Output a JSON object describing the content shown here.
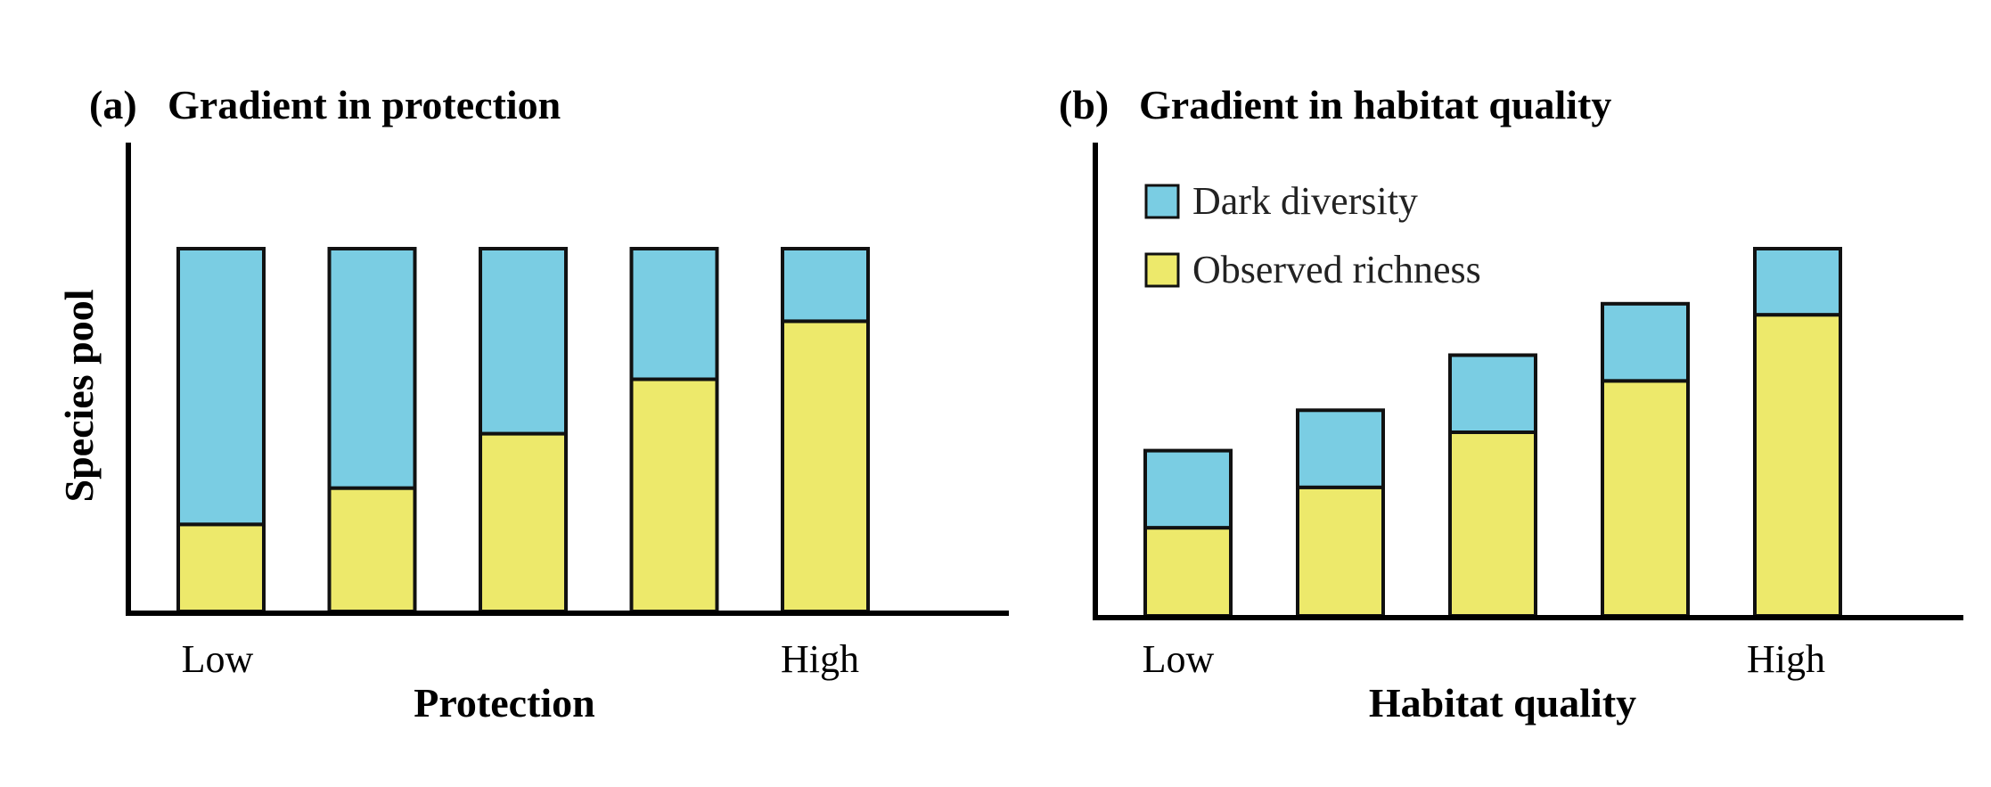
{
  "colors": {
    "dark_diversity": "#7acde3",
    "observed_richness": "#ede96b",
    "stroke": "#111111",
    "axis": "#000000"
  },
  "ylabel": "Species pool",
  "legend": {
    "dark": "Dark diversity",
    "observed": "Observed richness"
  },
  "chart_data": [
    {
      "type": "bar",
      "stacked": true,
      "panel": "(a)",
      "title": "Gradient in protection",
      "xlabel": "Protection",
      "ylabel": "Species pool",
      "tick_labels": [
        "Low",
        "",
        "",
        "",
        "High"
      ],
      "categories": [
        "1",
        "2",
        "3",
        "4",
        "5"
      ],
      "series": [
        {
          "name": "Observed richness",
          "values": [
            24,
            34,
            49,
            64,
            80
          ]
        },
        {
          "name": "Dark diversity",
          "values": [
            76,
            66,
            51,
            36,
            20
          ]
        }
      ],
      "ylim": [
        0,
        100
      ]
    },
    {
      "type": "bar",
      "stacked": true,
      "panel": "(b)",
      "title": "Gradient in habitat quality",
      "xlabel": "Habitat quality",
      "legend_position": "top-left",
      "tick_labels": [
        "Low",
        "",
        "",
        "",
        "High"
      ],
      "categories": [
        "1",
        "2",
        "3",
        "4",
        "5"
      ],
      "series": [
        {
          "name": "Observed richness",
          "values": [
            24,
            35,
            50,
            64,
            82
          ]
        },
        {
          "name": "Dark diversity",
          "values": [
            21,
            21,
            21,
            21,
            18
          ]
        }
      ],
      "ylim": [
        0,
        100
      ]
    }
  ]
}
